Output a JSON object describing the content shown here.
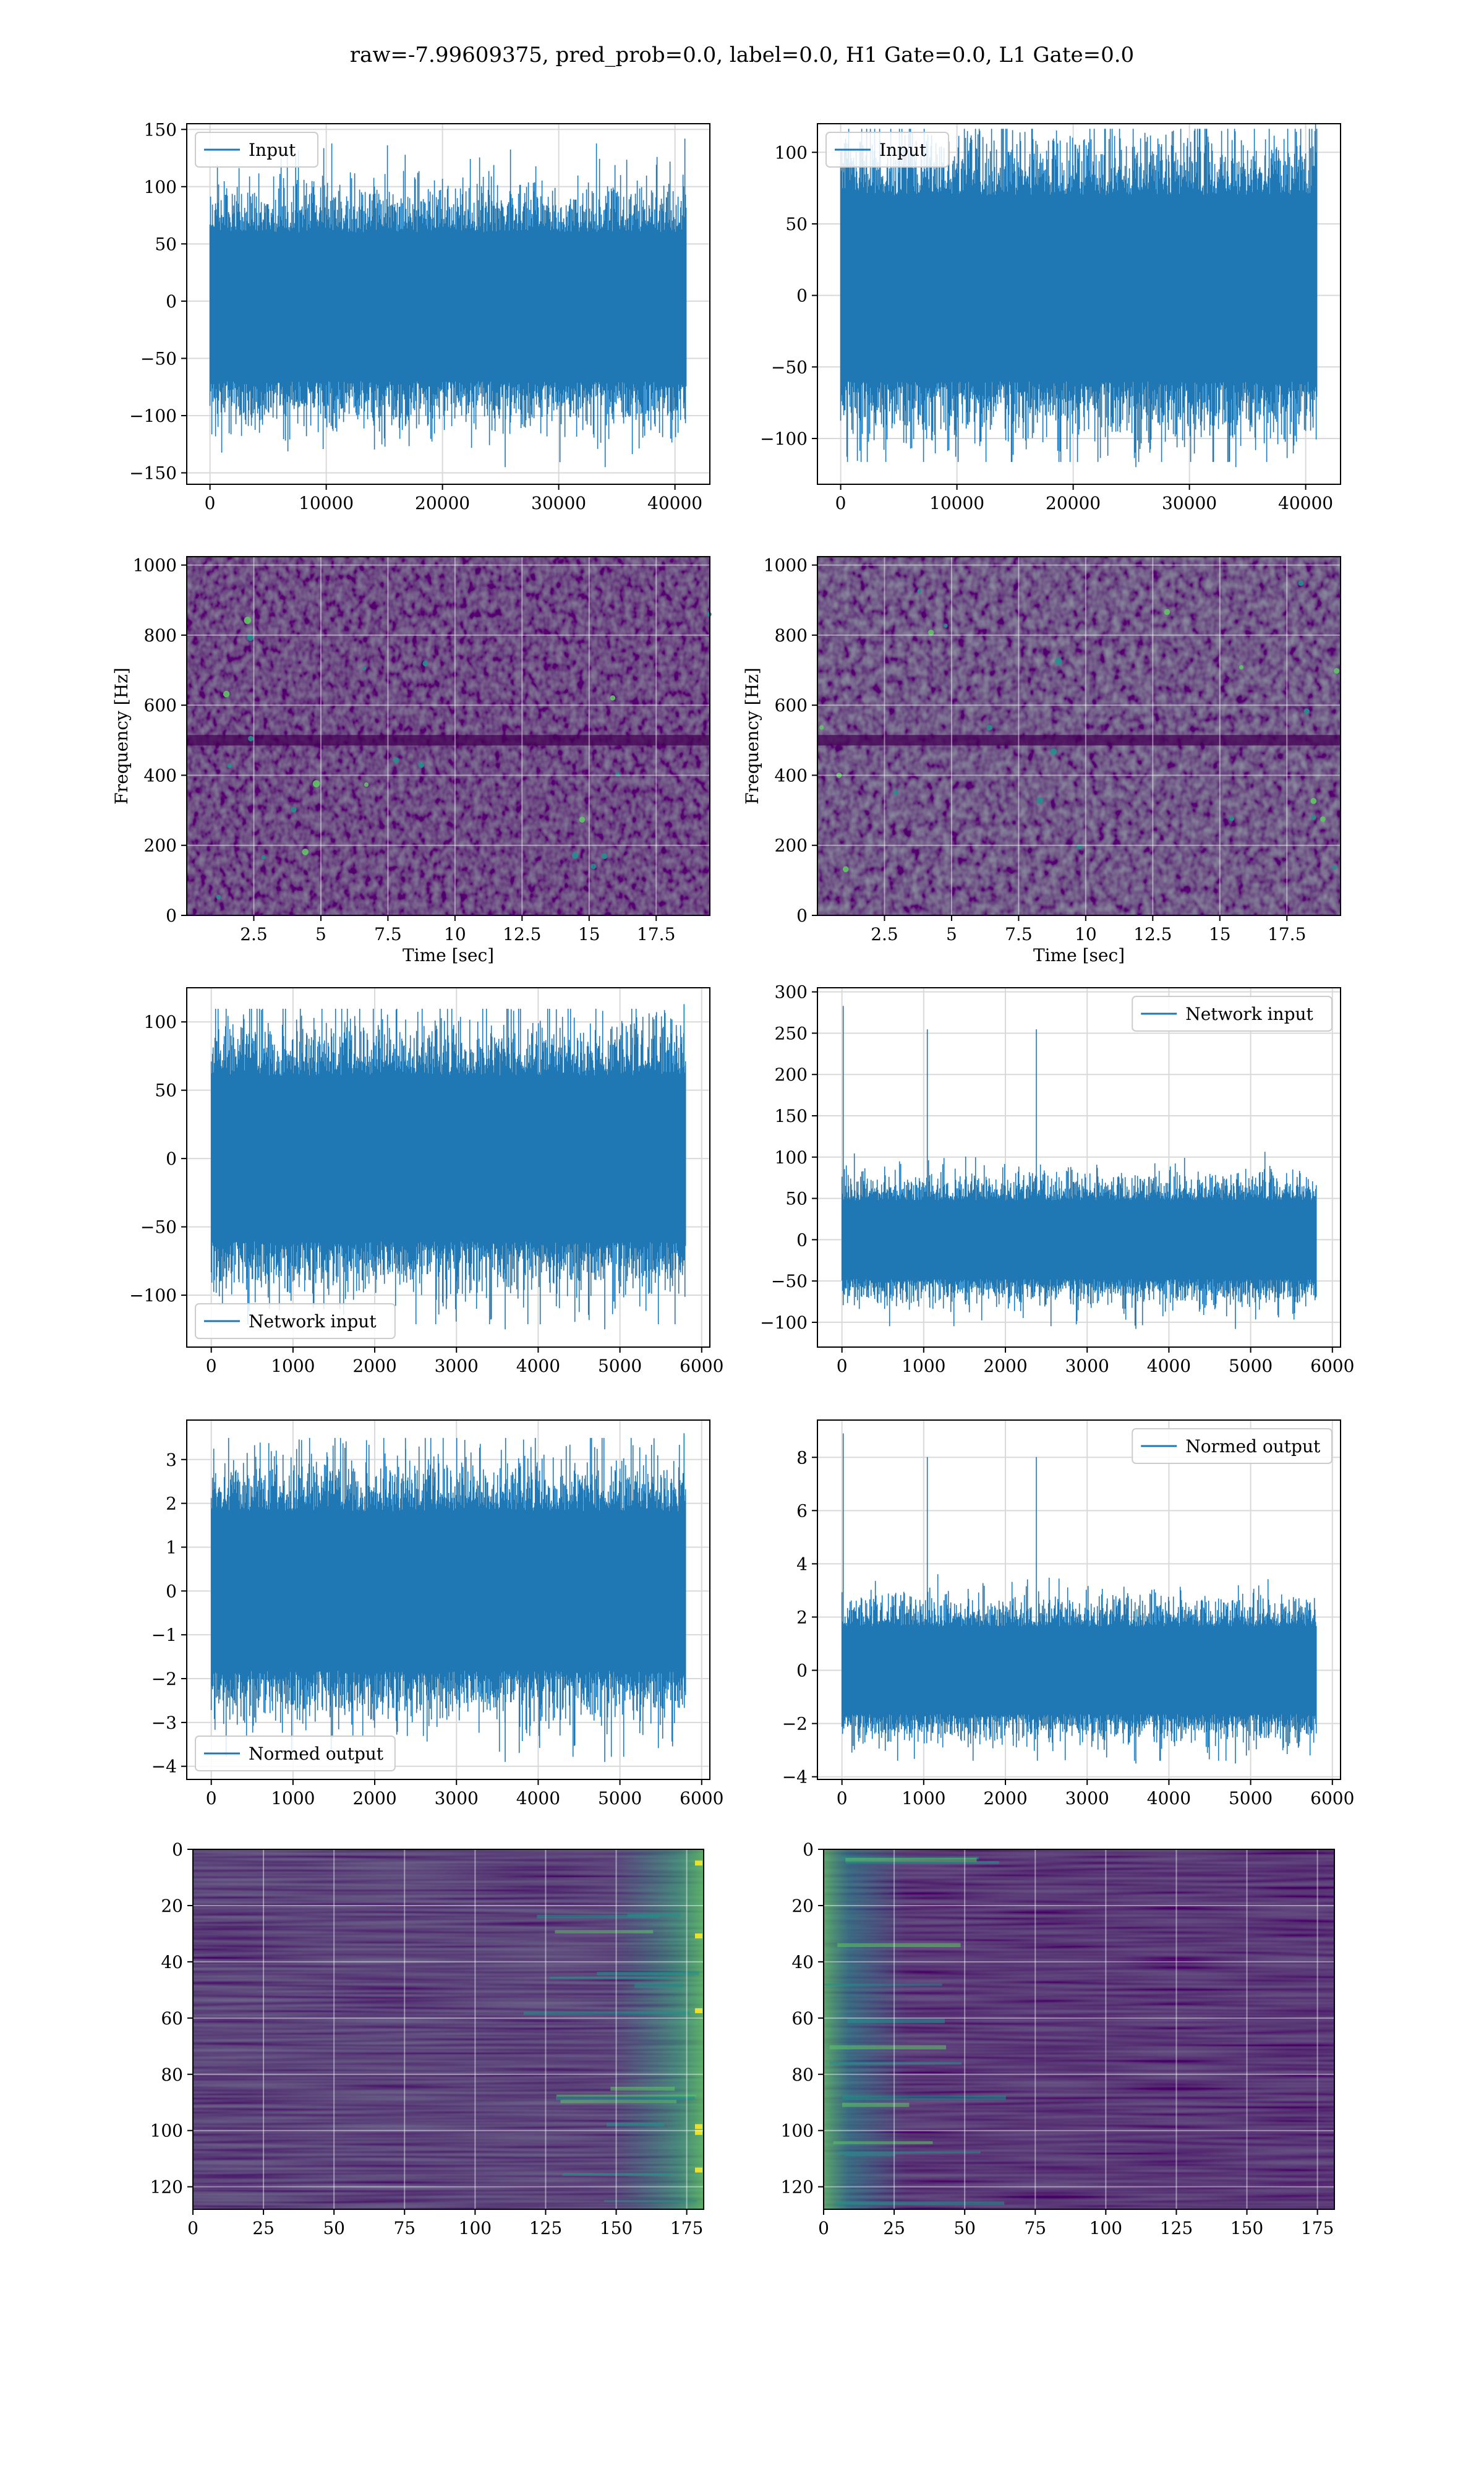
{
  "figure": {
    "suptitle": "raw=-7.99609375, pred_prob=0.0, label=0.0, H1 Gate=0.0, L1 Gate=0.0",
    "colors": {
      "line": "#1f77b4",
      "grid": "#d9d9d9",
      "viridis_dark": "#440154",
      "viridis_mid": "#31688e",
      "viridis_teal": "#21918c",
      "viridis_green": "#5ec962",
      "viridis_yellow": "#fde725"
    }
  },
  "chart_data": [
    {
      "id": "input_left",
      "type": "line",
      "series": [
        {
          "name": "Input",
          "n_samples": 40960,
          "envelope_typical": [
            -80,
            70
          ],
          "envelope_peaks": [
            -145,
            142
          ]
        }
      ],
      "xlim": [
        -2000,
        43000
      ],
      "ylim": [
        -160,
        155
      ],
      "xticks": [
        0,
        10000,
        20000,
        30000,
        40000
      ],
      "yticks": [
        -150,
        -100,
        -50,
        0,
        50,
        100,
        150
      ],
      "legend": "upper left",
      "grid": true
    },
    {
      "id": "input_right",
      "type": "line",
      "series": [
        {
          "name": "Input",
          "n_samples": 40960,
          "envelope_typical": [
            -70,
            80
          ],
          "envelope_peaks": [
            -120,
            120
          ]
        }
      ],
      "xlim": [
        -2000,
        43000
      ],
      "ylim": [
        -132,
        120
      ],
      "xticks": [
        0,
        10000,
        20000,
        30000,
        40000
      ],
      "yticks": [
        -100,
        -50,
        0,
        50,
        100
      ],
      "legend": "upper left",
      "grid": true
    },
    {
      "id": "spectrogram_left",
      "type": "heatmap",
      "xlabel": "Time [sec]",
      "ylabel": "Frequency [Hz]",
      "xlim": [
        0,
        19.5
      ],
      "ylim": [
        0,
        1024
      ],
      "xticks": [
        2.5,
        5.0,
        7.5,
        10.0,
        12.5,
        15.0,
        17.5
      ],
      "yticks": [
        0,
        200,
        400,
        600,
        800,
        1000
      ],
      "colormap": "viridis",
      "grid": true,
      "dark_band_hz": [
        485,
        515
      ]
    },
    {
      "id": "spectrogram_right",
      "type": "heatmap",
      "xlabel": "Time [sec]",
      "ylabel": "Frequency [Hz]",
      "xlim": [
        0,
        19.5
      ],
      "ylim": [
        0,
        1024
      ],
      "xticks": [
        2.5,
        5.0,
        7.5,
        10.0,
        12.5,
        15.0,
        17.5
      ],
      "yticks": [
        0,
        200,
        400,
        600,
        800,
        1000
      ],
      "colormap": "viridis",
      "grid": true,
      "dark_band_hz": [
        485,
        515
      ]
    },
    {
      "id": "network_input_left",
      "type": "line",
      "series": [
        {
          "name": "Network input",
          "n_samples": 5800,
          "envelope_typical": [
            -70,
            70
          ],
          "envelope_peaks": [
            -125,
            113
          ]
        }
      ],
      "xlim": [
        -300,
        6100
      ],
      "ylim": [
        -138,
        125
      ],
      "xticks": [
        0,
        1000,
        2000,
        3000,
        4000,
        5000,
        6000
      ],
      "yticks": [
        -100,
        -50,
        0,
        50,
        100
      ],
      "legend": "lower left",
      "grid": true
    },
    {
      "id": "network_input_right",
      "type": "line",
      "series": [
        {
          "name": "Network input",
          "n_samples": 5800,
          "envelope_typical": [
            -55,
            55
          ],
          "envelope_peaks": [
            -108,
            283
          ]
        }
      ],
      "xlim": [
        -300,
        6100
      ],
      "ylim": [
        -130,
        305
      ],
      "xticks": [
        0,
        1000,
        2000,
        3000,
        4000,
        5000,
        6000
      ],
      "yticks": [
        -100,
        -50,
        0,
        50,
        100,
        150,
        200,
        250,
        300
      ],
      "legend": "upper right",
      "grid": true
    },
    {
      "id": "normed_output_left",
      "type": "line",
      "series": [
        {
          "name": "Normed output",
          "n_samples": 5800,
          "envelope_typical": [
            -2.1,
            2.1
          ],
          "envelope_peaks": [
            -3.9,
            3.6
          ]
        }
      ],
      "xlim": [
        -300,
        6100
      ],
      "ylim": [
        -4.3,
        3.9
      ],
      "xticks": [
        0,
        1000,
        2000,
        3000,
        4000,
        5000,
        6000
      ],
      "yticks": [
        -4,
        -3,
        -2,
        -1,
        0,
        1,
        2,
        3
      ],
      "legend": "lower left",
      "grid": true
    },
    {
      "id": "normed_output_right",
      "type": "line",
      "series": [
        {
          "name": "Normed output",
          "n_samples": 5800,
          "envelope_typical": [
            -1.9,
            1.9
          ],
          "envelope_peaks": [
            -3.5,
            8.9
          ]
        }
      ],
      "xlim": [
        -300,
        6100
      ],
      "ylim": [
        -4.1,
        9.4
      ],
      "xticks": [
        0,
        1000,
        2000,
        3000,
        4000,
        5000,
        6000
      ],
      "yticks": [
        -4,
        -2,
        0,
        2,
        4,
        6,
        8
      ],
      "legend": "upper right",
      "grid": true
    },
    {
      "id": "feature_map_left",
      "type": "heatmap",
      "xlim": [
        0,
        181
      ],
      "ylim": [
        128,
        0
      ],
      "xticks": [
        0,
        25,
        50,
        75,
        100,
        125,
        150,
        175
      ],
      "yticks": [
        0,
        20,
        40,
        60,
        80,
        100,
        120
      ],
      "colormap": "viridis",
      "grid": true,
      "bright_edge": "right"
    },
    {
      "id": "feature_map_right",
      "type": "heatmap",
      "xlim": [
        0,
        181
      ],
      "ylim": [
        128,
        0
      ],
      "xticks": [
        0,
        25,
        50,
        75,
        100,
        125,
        150,
        175
      ],
      "yticks": [
        0,
        20,
        40,
        60,
        80,
        100,
        120
      ],
      "colormap": "viridis",
      "grid": true,
      "bright_edge": "left"
    }
  ]
}
